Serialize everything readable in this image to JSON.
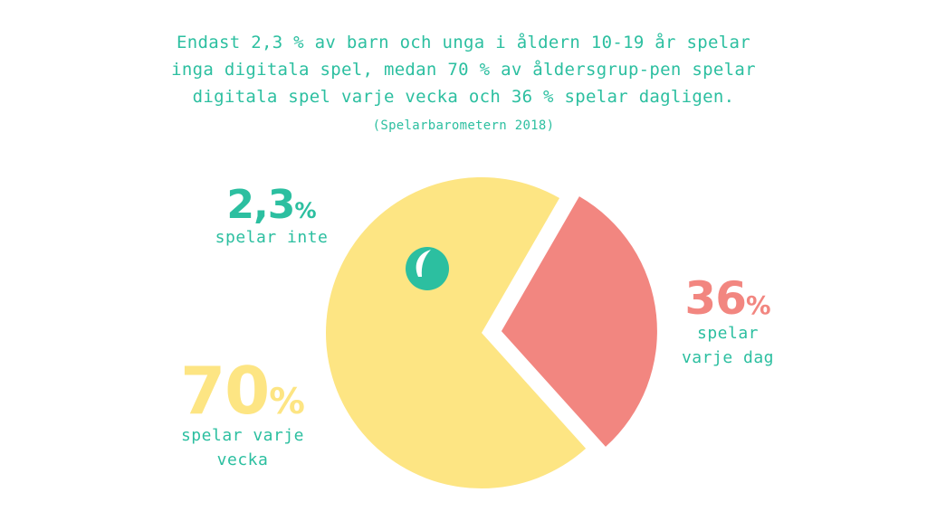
{
  "header": {
    "text": "Endast 2,3 % av barn och unga i åldern 10-19 år spelar inga digitala spel, medan 70 % av åldersgrup-pen spelar digitala spel varje vecka och 36 % spelar dagligen.",
    "source": "(Spelarbarometern 2018)"
  },
  "labels": {
    "none": {
      "value": "2,3",
      "unit": "%",
      "caption": "spelar inte"
    },
    "daily": {
      "value": "36",
      "unit": "%",
      "caption": "spelar varje dag"
    },
    "weekly": {
      "value": "70",
      "unit": "%",
      "caption": "spelar varje vecka"
    }
  },
  "colors": {
    "teal": "#2cbfa0",
    "salmon": "#f28680",
    "yellow": "#fde583"
  },
  "chart_data": {
    "type": "pie",
    "unit": "%",
    "slices": [
      {
        "label": "spelar varje vecka",
        "value": 70,
        "color": "#fde583"
      },
      {
        "label": "spelar varje dag",
        "value": 36,
        "color": "#f28680"
      },
      {
        "label": "spelar inte",
        "value": 2.3,
        "color": "#2cbfa0"
      }
    ]
  }
}
